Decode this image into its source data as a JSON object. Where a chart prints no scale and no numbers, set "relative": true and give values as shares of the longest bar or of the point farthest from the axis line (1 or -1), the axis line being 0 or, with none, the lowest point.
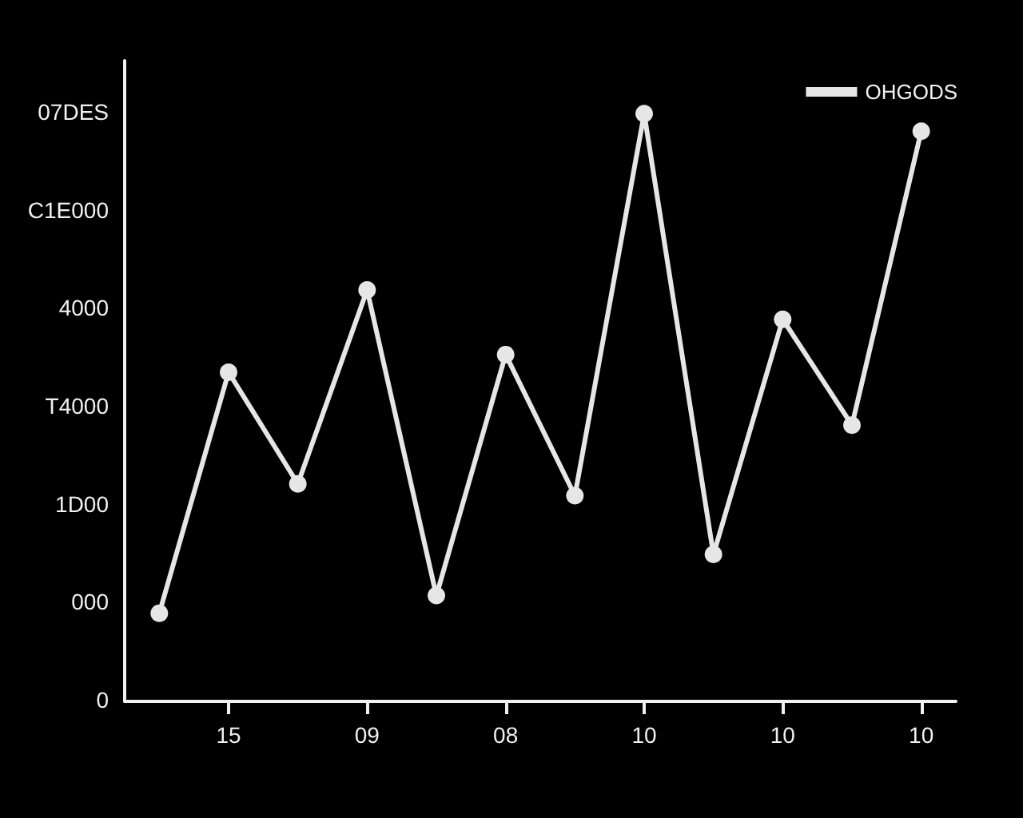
{
  "chart_data": {
    "type": "line",
    "relative": true,
    "categories": [
      null,
      "15",
      null,
      "09",
      null,
      "08",
      null,
      "10",
      null,
      "10",
      null,
      "10"
    ],
    "series": [
      {
        "name": "OHGODS",
        "color": "#e6e6e6",
        "values": [
          0.15,
          0.56,
          0.37,
          0.7,
          0.18,
          0.59,
          0.35,
          1,
          0.25,
          0.65,
          0.47,
          0.97
        ]
      }
    ],
    "annotations": [
      "0",
      "000",
      "1D00",
      "T4000",
      "4000",
      "C1E000",
      "07DES"
    ],
    "legend": "top right",
    "marker": "circle",
    "line_style": "solid"
  }
}
